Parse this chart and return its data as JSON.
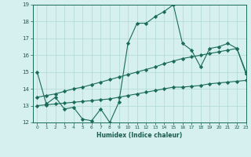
{
  "x": [
    0,
    1,
    2,
    3,
    4,
    5,
    6,
    7,
    8,
    9,
    10,
    11,
    12,
    13,
    14,
    15,
    16,
    17,
    18,
    19,
    20,
    21,
    22,
    23
  ],
  "line_top": [
    15.0,
    13.1,
    13.5,
    12.8,
    12.9,
    12.2,
    12.1,
    12.8,
    12.0,
    13.2,
    16.7,
    17.9,
    17.9,
    18.3,
    18.6,
    19.0,
    16.7,
    16.3,
    15.3,
    16.4,
    16.5,
    16.7,
    16.4,
    14.9
  ],
  "line_mid": [
    13.5,
    13.6,
    13.7,
    13.85,
    14.0,
    14.1,
    14.25,
    14.4,
    14.55,
    14.7,
    14.85,
    15.0,
    15.15,
    15.3,
    15.5,
    15.65,
    15.8,
    15.9,
    16.0,
    16.1,
    16.2,
    16.3,
    16.4,
    15.0
  ],
  "line_bot": [
    13.0,
    13.05,
    13.1,
    13.15,
    13.2,
    13.25,
    13.3,
    13.35,
    13.4,
    13.5,
    13.6,
    13.7,
    13.8,
    13.9,
    14.0,
    14.1,
    14.1,
    14.15,
    14.2,
    14.3,
    14.35,
    14.4,
    14.45,
    14.5
  ],
  "line_color": "#1a6b5a",
  "bg_color": "#d5f0ee",
  "grid_color": "#b0d8d4",
  "xlabel": "Humidex (Indice chaleur)",
  "xlim": [
    -0.5,
    23
  ],
  "ylim": [
    12,
    19
  ],
  "yticks": [
    12,
    13,
    14,
    15,
    16,
    17,
    18,
    19
  ],
  "xticks": [
    0,
    1,
    2,
    3,
    4,
    5,
    6,
    7,
    8,
    9,
    10,
    11,
    12,
    13,
    14,
    15,
    16,
    17,
    18,
    19,
    20,
    21,
    22,
    23
  ],
  "xtick_labels": [
    "0",
    "1",
    "2",
    "3",
    "4",
    "5",
    "6",
    "7",
    "8",
    "9",
    "10",
    "11",
    "12",
    "13",
    "14",
    "15",
    "16",
    "17",
    "18",
    "19",
    "20",
    "21",
    "22",
    "23"
  ],
  "marker": "D",
  "marker_size": 2.2,
  "line_width": 0.8
}
